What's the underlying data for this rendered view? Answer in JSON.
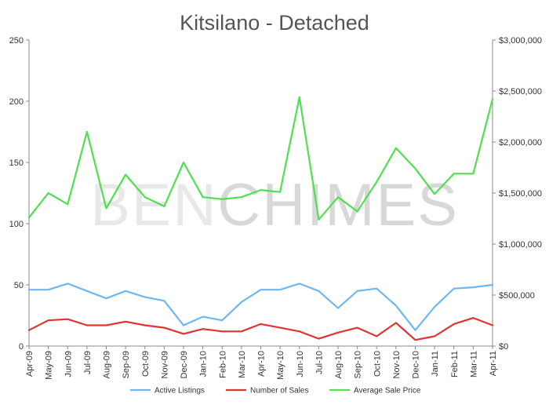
{
  "chart_data": {
    "type": "line",
    "title": "Kitsilano - Detached",
    "watermark": {
      "light": "BEN",
      "dark": "CHIMES"
    },
    "categories": [
      "Apr-09",
      "May-09",
      "Jun-09",
      "Jul-09",
      "Aug-09",
      "Sep-09",
      "Oct-09",
      "Nov-09",
      "Dec-09",
      "Jan-10",
      "Feb-10",
      "Mar-10",
      "Apr-10",
      "May-10",
      "Jun-10",
      "Jul-10",
      "Aug-10",
      "Sep-10",
      "Oct-10",
      "Nov-10",
      "Dec-10",
      "Jan-11",
      "Feb-11",
      "Mar-11",
      "Apr-11"
    ],
    "y_left": {
      "ticks": [
        0,
        50,
        100,
        150,
        200,
        250
      ],
      "ylim": [
        0,
        250
      ]
    },
    "y_right": {
      "ticks": [
        "$0",
        "$500,000",
        "$1,000,000",
        "$1,500,000",
        "$2,000,000",
        "$2,500,000",
        "$3,000,000"
      ],
      "ylim": [
        0,
        3000000
      ]
    },
    "legend_position": "bottom",
    "grid": false,
    "series": [
      {
        "name": "Active Listings",
        "color": "#6fb7f2",
        "axis": "left",
        "values": [
          46,
          46,
          51,
          45,
          39,
          45,
          40,
          37,
          17,
          24,
          21,
          36,
          46,
          46,
          51,
          45,
          31,
          45,
          47,
          33,
          13,
          32,
          47,
          48,
          50
        ]
      },
      {
        "name": "Number of Sales",
        "color": "#e03434",
        "axis": "left",
        "values": [
          13,
          21,
          22,
          17,
          17,
          20,
          17,
          15,
          10,
          14,
          12,
          12,
          18,
          15,
          12,
          6,
          11,
          15,
          8,
          19,
          5,
          8,
          18,
          23,
          17
        ]
      },
      {
        "name": "Average Sale Price",
        "color": "#4fe04f",
        "axis": "right",
        "values": [
          1260000,
          1500000,
          1390000,
          2100000,
          1350000,
          1680000,
          1460000,
          1370000,
          1800000,
          1460000,
          1440000,
          1460000,
          1530000,
          1510000,
          2440000,
          1240000,
          1460000,
          1320000,
          1610000,
          1940000,
          1740000,
          1490000,
          1690000,
          1690000,
          2420000
        ]
      }
    ]
  }
}
